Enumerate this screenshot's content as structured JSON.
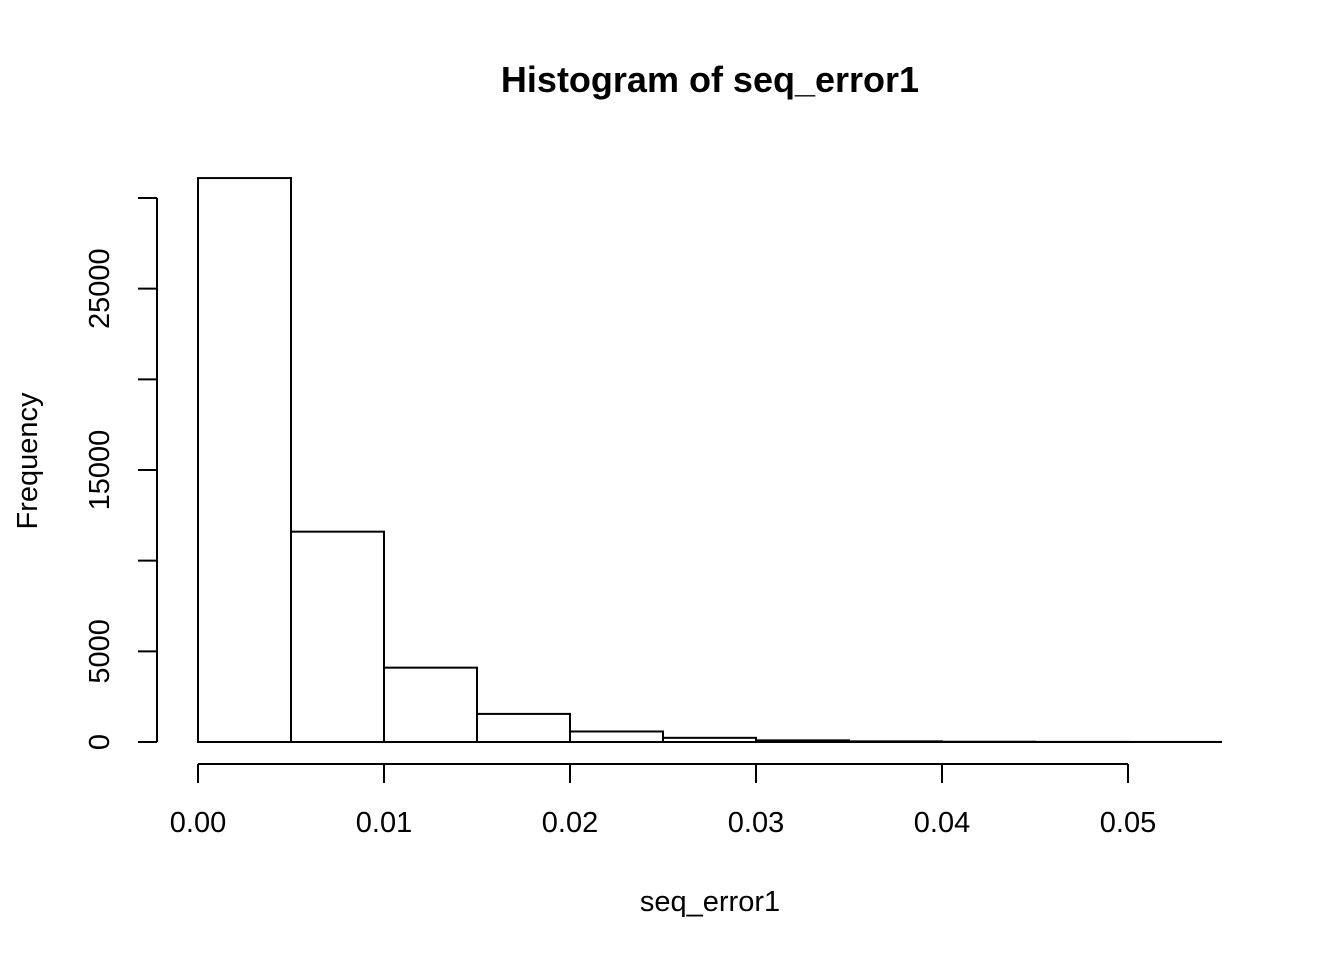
{
  "chart_data": {
    "type": "bar",
    "title": "Histogram of seq_error1",
    "xlabel": "seq_error1",
    "ylabel": "Frequency",
    "bins": [
      {
        "start": 0.0,
        "end": 0.005,
        "count": 31100
      },
      {
        "start": 0.005,
        "end": 0.01,
        "count": 11600
      },
      {
        "start": 0.01,
        "end": 0.015,
        "count": 4100
      },
      {
        "start": 0.015,
        "end": 0.02,
        "count": 1550
      },
      {
        "start": 0.02,
        "end": 0.025,
        "count": 580
      },
      {
        "start": 0.025,
        "end": 0.03,
        "count": 230
      },
      {
        "start": 0.03,
        "end": 0.035,
        "count": 90
      },
      {
        "start": 0.035,
        "end": 0.04,
        "count": 35
      },
      {
        "start": 0.04,
        "end": 0.045,
        "count": 15
      },
      {
        "start": 0.045,
        "end": 0.05,
        "count": 6
      },
      {
        "start": 0.05,
        "end": 0.055,
        "count": 3
      }
    ],
    "x_ticks": [
      "0.00",
      "0.01",
      "0.02",
      "0.03",
      "0.04",
      "0.05"
    ],
    "x_tick_values": [
      0.0,
      0.01,
      0.02,
      0.03,
      0.04,
      0.05
    ],
    "y_ticks": [
      "0",
      "5000",
      "15000",
      "25000"
    ],
    "y_tick_values": [
      0,
      5000,
      15000,
      25000
    ],
    "y_minor_tick_values": [
      10000,
      20000,
      30000
    ],
    "xlim": [
      0,
      0.055
    ],
    "ylim": [
      0,
      30000
    ],
    "grid": false
  }
}
